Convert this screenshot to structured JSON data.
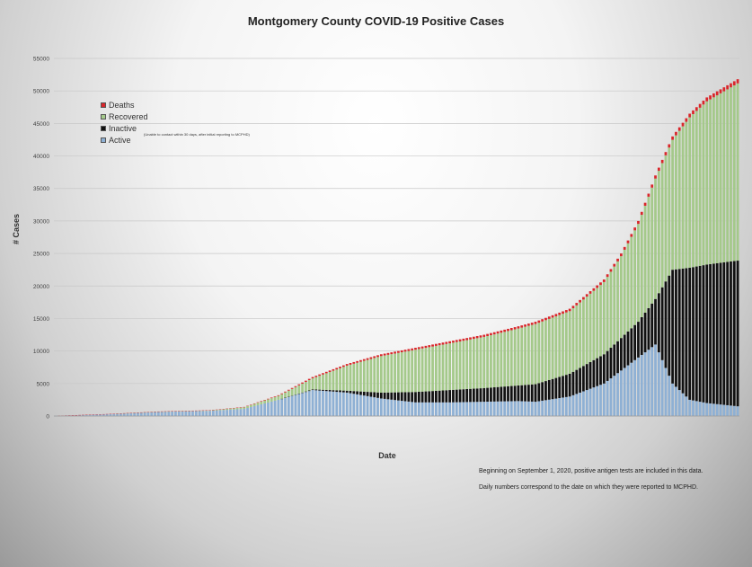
{
  "chart_data": {
    "type": "bar",
    "stacked": true,
    "title": "Montgomery County COVID-19 Positive Cases",
    "xlabel": "Date",
    "ylabel": "# Cases",
    "ylim": [
      0,
      55000
    ],
    "yticks": [
      "0",
      "5000",
      "10000",
      "15000",
      "20000",
      "25000",
      "30000",
      "35000",
      "40000",
      "45000",
      "50000",
      "55000"
    ],
    "grid": true,
    "legend_position": "top-left",
    "legend": [
      {
        "name": "Deaths",
        "color": "#d9262b"
      },
      {
        "name": "Recovered",
        "color": "#a4c98a"
      },
      {
        "name": "Inactive",
        "color": "#111111"
      },
      {
        "name": "Active",
        "color": "#8eb0d4"
      }
    ],
    "legend_note": "(Unable to contact within 30 days, after initial reporting to MCPHD)",
    "notes": [
      "Beginning on September 1, 2020, positive antigen tests are included in this data.",
      "Daily numbers correspond to the date on which they were reported to MCPHD."
    ],
    "series_colors": {
      "active": "#8eb0d4",
      "inactive": "#111111",
      "recovered": "#a4c98a",
      "deaths": "#d9262b"
    },
    "x_count": 200,
    "checkpoints": {
      "index": [
        0,
        15,
        30,
        45,
        55,
        65,
        75,
        85,
        95,
        105,
        115,
        125,
        135,
        140,
        150,
        160,
        165,
        170,
        175,
        180,
        185,
        190,
        199
      ],
      "total": [
        30,
        300,
        700,
        900,
        1400,
        3200,
        6000,
        8000,
        9500,
        10500,
        11500,
        12500,
        13800,
        14500,
        16500,
        21000,
        25000,
        30000,
        37000,
        43000,
        46500,
        49000,
        51800
      ],
      "active": [
        30,
        300,
        650,
        800,
        1100,
        2500,
        4000,
        3600,
        2700,
        2100,
        2100,
        2200,
        2300,
        2200,
        3000,
        5000,
        7000,
        9000,
        11000,
        5000,
        2500,
        2000,
        1500
      ],
      "inactive": [
        0,
        0,
        0,
        0,
        0,
        0,
        100,
        300,
        900,
        1600,
        1900,
        2100,
        2400,
        2700,
        3500,
        4500,
        5000,
        5500,
        7000,
        17500,
        20300,
        21300,
        22400
      ],
      "deaths": [
        0,
        5,
        20,
        30,
        50,
        100,
        200,
        250,
        280,
        300,
        320,
        330,
        340,
        350,
        370,
        400,
        420,
        450,
        480,
        520,
        560,
        600,
        640
      ]
    }
  }
}
